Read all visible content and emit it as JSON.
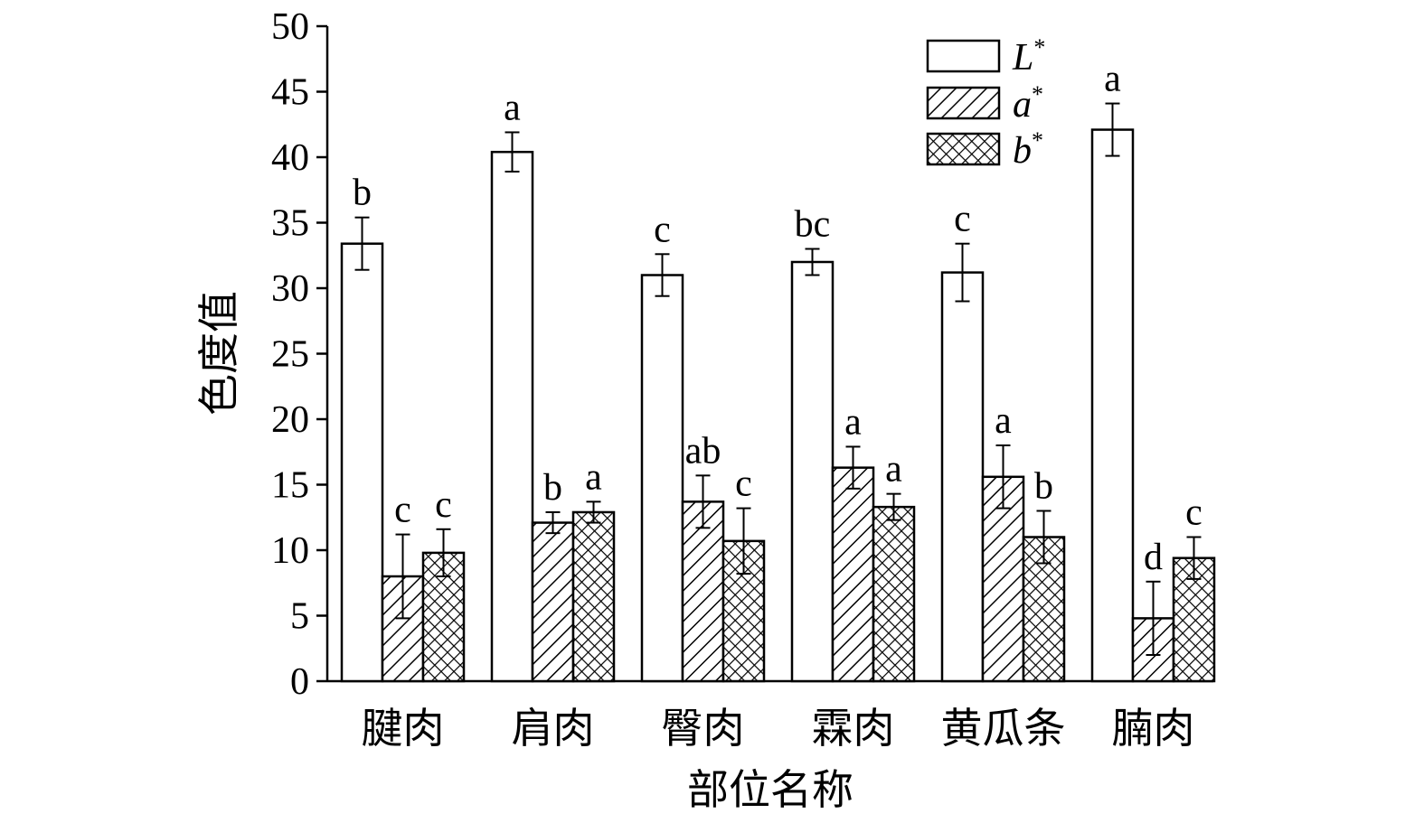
{
  "chart_data": {
    "type": "bar",
    "title": "",
    "xlabel": "部位名称",
    "ylabel": "色度值",
    "ylim": [
      0,
      50
    ],
    "yticks": [
      0,
      5,
      10,
      15,
      20,
      25,
      30,
      35,
      40,
      45,
      50
    ],
    "grid": false,
    "legend_position": "top-right",
    "categories": [
      "腱肉",
      "肩肉",
      "臀肉",
      "霖肉",
      "黄瓜条",
      "腩肉"
    ],
    "series": [
      {
        "name": "L",
        "sup": "*",
        "fill": "white",
        "values": [
          33.4,
          40.4,
          31.0,
          32.0,
          31.2,
          42.1
        ],
        "errors": [
          2.0,
          1.5,
          1.6,
          1.0,
          2.2,
          2.0
        ],
        "labels": [
          "b",
          "a",
          "c",
          "bc",
          "c",
          "a"
        ]
      },
      {
        "name": "a",
        "sup": "*",
        "fill": "diagonal-hatch",
        "values": [
          8.0,
          12.1,
          13.7,
          16.3,
          15.6,
          4.8
        ],
        "errors": [
          3.2,
          0.8,
          2.0,
          1.6,
          2.4,
          2.8
        ],
        "labels": [
          "c",
          "b",
          "ab",
          "a",
          "a",
          "d"
        ]
      },
      {
        "name": "b",
        "sup": "*",
        "fill": "cross-hatch",
        "values": [
          9.8,
          12.9,
          10.7,
          13.3,
          11.0,
          9.4
        ],
        "errors": [
          1.8,
          0.8,
          2.5,
          1.0,
          2.0,
          1.6
        ],
        "labels": [
          "c",
          "a",
          "c",
          "a",
          "b",
          "c"
        ]
      }
    ]
  }
}
